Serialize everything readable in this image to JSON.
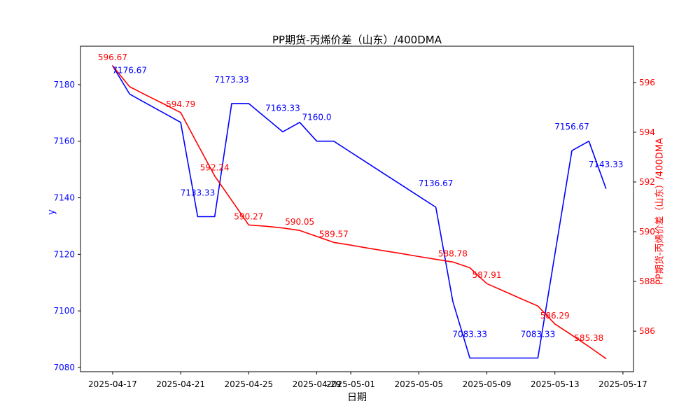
{
  "chart_data": {
    "type": "line",
    "title": "PP期货-丙烯价差（山东）/400DMA",
    "xlabel": "日期",
    "ylabel_left": "y",
    "ylabel_right": "PP期货-丙烯价差（山东）/400DMA",
    "grid": false,
    "legend": "none",
    "colors": {
      "left_series": "#0000ff",
      "right_series": "#ff0000",
      "axis": "#000000"
    },
    "x": [
      "2025-04-17",
      "2025-04-18",
      "2025-04-19",
      "2025-04-20",
      "2025-04-21",
      "2025-04-22",
      "2025-04-23",
      "2025-04-24",
      "2025-04-25",
      "2025-04-26",
      "2025-04-27",
      "2025-04-28",
      "2025-04-29",
      "2025-04-30",
      "2025-05-01",
      "2025-05-02",
      "2025-05-03",
      "2025-05-04",
      "2025-05-05",
      "2025-05-06",
      "2025-05-07",
      "2025-05-08",
      "2025-05-09",
      "2025-05-10",
      "2025-05-11",
      "2025-05-12",
      "2025-05-13",
      "2025-05-14",
      "2025-05-15",
      "2025-05-16"
    ],
    "series": [
      {
        "name": "y",
        "axis": "left",
        "color": "#0000ff",
        "label_dy": -30,
        "values": [
          7186.67,
          7176.67,
          7173.33,
          7170.0,
          7166.67,
          7133.33,
          7133.33,
          7173.33,
          7173.33,
          7168.33,
          7163.33,
          7166.67,
          7160.0,
          7160.0,
          7156.11,
          7152.22,
          7148.33,
          7144.44,
          7140.56,
          7136.67,
          7103.33,
          7083.33,
          7083.33,
          7083.33,
          7083.33,
          7083.33,
          7120.0,
          7156.67,
          7160.0,
          7143.33
        ]
      },
      {
        "name": "PP期货-丙烯价差（山东）/400DMA",
        "axis": "right",
        "color": "#ff0000",
        "label_dy": -8,
        "values": [
          596.67,
          595.83,
          595.48,
          595.14,
          594.79,
          593.51,
          592.24,
          591.26,
          590.27,
          590.22,
          590.15,
          590.05,
          589.81,
          589.57,
          589.46,
          589.34,
          589.23,
          589.12,
          589.0,
          588.89,
          588.78,
          588.55,
          587.91,
          587.61,
          587.31,
          587.01,
          586.29,
          585.84,
          585.38,
          584.9
        ]
      }
    ],
    "annotations": [
      {
        "series": 1,
        "day": 0,
        "text": "596.67"
      },
      {
        "series": 0,
        "day": 1,
        "text": "7176.67"
      },
      {
        "series": 1,
        "day": 4,
        "text": "594.79"
      },
      {
        "series": 0,
        "day": 5,
        "text": "7133.33"
      },
      {
        "series": 1,
        "day": 6,
        "text": "592.24"
      },
      {
        "series": 0,
        "day": 7,
        "text": "7173.33"
      },
      {
        "series": 1,
        "day": 8,
        "text": "590.27"
      },
      {
        "series": 0,
        "day": 10,
        "text": "7163.33"
      },
      {
        "series": 1,
        "day": 11,
        "text": "590.05"
      },
      {
        "series": 0,
        "day": 12,
        "text": "7160.0"
      },
      {
        "series": 1,
        "day": 13,
        "text": "589.57"
      },
      {
        "series": 0,
        "day": 19,
        "text": "7136.67"
      },
      {
        "series": 1,
        "day": 20,
        "text": "588.78"
      },
      {
        "series": 0,
        "day": 21,
        "text": "7083.33"
      },
      {
        "series": 1,
        "day": 22,
        "text": "587.91"
      },
      {
        "series": 0,
        "day": 25,
        "text": "7083.33"
      },
      {
        "series": 1,
        "day": 26,
        "text": "586.29"
      },
      {
        "series": 0,
        "day": 27,
        "text": "7156.67"
      },
      {
        "series": 1,
        "day": 28,
        "text": "585.38"
      },
      {
        "series": 0,
        "day": 29,
        "text": "7143.33"
      }
    ],
    "x_axis": {
      "min": -1.89,
      "max": 30.62,
      "ticks": [
        {
          "day": 0,
          "label": "2025-04-17"
        },
        {
          "day": 4,
          "label": "2025-04-21"
        },
        {
          "day": 8,
          "label": "2025-04-25"
        },
        {
          "day": 12,
          "label": "2025-04-29"
        },
        {
          "day": 14,
          "label": "2025-05-01"
        },
        {
          "day": 18,
          "label": "2025-05-05"
        },
        {
          "day": 22,
          "label": "2025-05-09"
        },
        {
          "day": 26,
          "label": "2025-05-13"
        },
        {
          "day": 30,
          "label": "2025-05-17"
        }
      ]
    },
    "y_left": {
      "min": 7078.5,
      "max": 7193.6,
      "ticks": [
        7080,
        7100,
        7120,
        7140,
        7160,
        7180
      ]
    },
    "y_right": {
      "min": 584.37,
      "max": 597.46,
      "ticks": [
        586,
        588,
        590,
        592,
        594,
        596
      ]
    }
  }
}
